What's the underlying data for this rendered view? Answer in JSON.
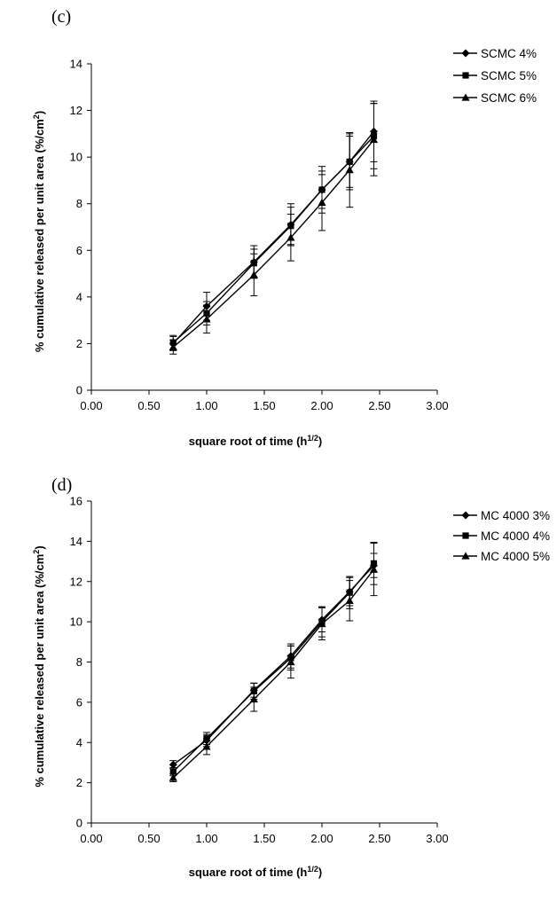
{
  "chart_data": [
    {
      "type": "line",
      "panel_label": "(c)",
      "xlabel": "square root of time (h",
      "xlabel_sup": "1/2",
      "xlabel_end": ")",
      "ylabel": "% cumulative released per unit area (%/cm",
      "ylabel_sup": "2",
      "ylabel_end": ")",
      "xlim": [
        0,
        3
      ],
      "ylim": [
        0,
        14
      ],
      "xticks": [
        "0.00",
        "0.50",
        "1.00",
        "1.50",
        "2.00",
        "2.50",
        "3.00"
      ],
      "yticks": [
        "0",
        "2",
        "4",
        "6",
        "8",
        "10",
        "12",
        "14"
      ],
      "legend_position": "top-right",
      "x": [
        0.71,
        1.0,
        1.41,
        1.73,
        2.0,
        2.24,
        2.45
      ],
      "series": [
        {
          "name": "SCMC 4%",
          "marker": "diamond",
          "values": [
            2.0,
            3.6,
            5.5,
            7.1,
            8.6,
            9.8,
            11.1
          ],
          "errors": [
            0.3,
            0.6,
            0.7,
            0.9,
            1.0,
            1.2,
            1.3
          ]
        },
        {
          "name": "SCMC 5%",
          "marker": "square",
          "values": [
            2.05,
            3.3,
            5.45,
            7.05,
            8.6,
            9.8,
            10.9
          ],
          "errors": [
            0.3,
            0.5,
            0.6,
            0.8,
            0.8,
            1.1,
            1.4
          ]
        },
        {
          "name": "SCMC 6%",
          "marker": "triangle",
          "values": [
            1.85,
            3.05,
            4.95,
            6.55,
            8.05,
            9.45,
            10.75
          ],
          "errors": [
            0.3,
            0.6,
            0.9,
            1.0,
            1.2,
            1.6,
            1.55
          ]
        }
      ]
    },
    {
      "type": "line",
      "panel_label": "(d)",
      "xlabel": "square root of time (h",
      "xlabel_sup": "1/2",
      "xlabel_end": ")",
      "ylabel": "% cumulative released per unit area (%/cm",
      "ylabel_sup": "2",
      "ylabel_end": ")",
      "xlim": [
        0,
        3
      ],
      "ylim": [
        0,
        16
      ],
      "xticks": [
        "0.00",
        "0.50",
        "1.00",
        "1.50",
        "2.00",
        "2.50",
        "3.00"
      ],
      "yticks": [
        "0",
        "2",
        "4",
        "6",
        "8",
        "10",
        "12",
        "14",
        "16"
      ],
      "legend_position": "top-right",
      "x": [
        0.71,
        1.0,
        1.41,
        1.73,
        2.0,
        2.24,
        2.45
      ],
      "series": [
        {
          "name": "MC 4000 3%",
          "marker": "diamond",
          "values": [
            2.9,
            4.1,
            6.6,
            8.3,
            10.1,
            11.5,
            12.8
          ],
          "errors": [
            0.2,
            0.3,
            0.35,
            0.6,
            0.6,
            0.7,
            0.6
          ]
        },
        {
          "name": "MC 4000 4%",
          "marker": "square",
          "values": [
            2.55,
            4.2,
            6.55,
            8.2,
            10.0,
            11.45,
            12.9
          ],
          "errors": [
            0.2,
            0.3,
            0.4,
            0.6,
            0.75,
            0.8,
            1.05
          ]
        },
        {
          "name": "MC 4000 5%",
          "marker": "triangle",
          "values": [
            2.25,
            3.8,
            6.15,
            8.0,
            9.9,
            11.05,
            12.6
          ],
          "errors": [
            0.2,
            0.4,
            0.6,
            0.8,
            0.8,
            1.0,
            1.3
          ]
        }
      ]
    }
  ]
}
